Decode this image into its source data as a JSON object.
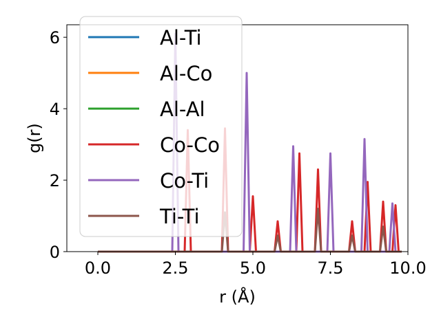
{
  "chart_data": {
    "type": "line",
    "title": "",
    "xlabel": "r (Å)",
    "ylabel": "g(r)",
    "xlim": [
      -1.0,
      10.0
    ],
    "ylim": [
      0,
      6.35
    ],
    "x_ticks": [
      0.0,
      2.5,
      5.0,
      7.5,
      10.0
    ],
    "x_tick_labels": [
      "0.0",
      "2.5",
      "5.0",
      "7.5",
      "10.0"
    ],
    "y_ticks": [
      0,
      2,
      4,
      6
    ],
    "y_tick_labels": [
      "0",
      "2",
      "4",
      "6"
    ],
    "grid": false,
    "legend_position": "upper-left",
    "x_range": [
      0.0,
      9.8
    ],
    "peak_half_width": 0.1,
    "series": [
      {
        "name": "Al-Ti",
        "color": "#1f77b4",
        "peaks": []
      },
      {
        "name": "Al-Co",
        "color": "#ff7f0e",
        "peaks": []
      },
      {
        "name": "Al-Al",
        "color": "#2ca02c",
        "peaks": []
      },
      {
        "name": "Co-Co",
        "color": "#d62728",
        "peaks": [
          [
            2.9,
            3.4
          ],
          [
            4.1,
            3.45
          ],
          [
            5.0,
            1.55
          ],
          [
            5.8,
            0.85
          ],
          [
            6.5,
            2.75
          ],
          [
            7.1,
            2.3
          ],
          [
            8.2,
            0.85
          ],
          [
            8.7,
            1.95
          ],
          [
            9.2,
            1.4
          ],
          [
            9.6,
            1.3
          ]
        ]
      },
      {
        "name": "Co-Ti",
        "color": "#9467bd",
        "peaks": [
          [
            2.5,
            6.1
          ],
          [
            4.8,
            5.0
          ],
          [
            6.3,
            2.95
          ],
          [
            7.5,
            2.75
          ],
          [
            8.6,
            3.15
          ],
          [
            9.5,
            1.35
          ]
        ]
      },
      {
        "name": "Ti-Ti",
        "color": "#8c564b",
        "peaks": [
          [
            4.1,
            1.1
          ],
          [
            5.8,
            0.45
          ],
          [
            7.1,
            1.2
          ],
          [
            8.2,
            0.45
          ],
          [
            9.2,
            0.7
          ]
        ]
      }
    ]
  }
}
